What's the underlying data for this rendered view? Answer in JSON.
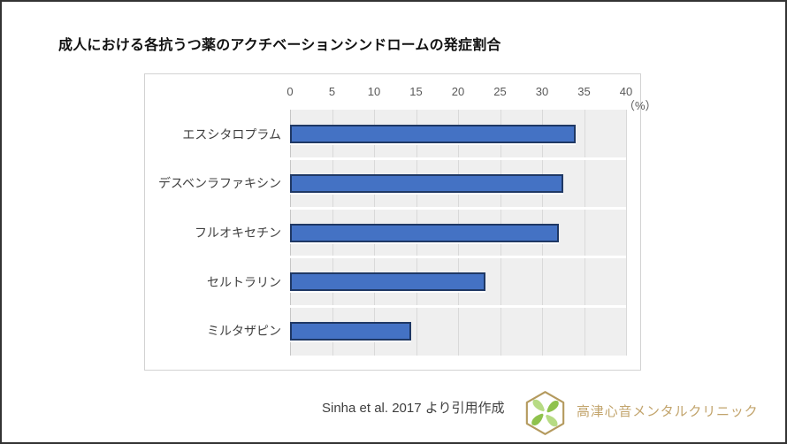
{
  "page": {
    "title": "成人における各抗うつ薬のアクチベーションシンドロームの発症割合"
  },
  "chart_data": {
    "type": "bar",
    "orientation": "horizontal",
    "title": "成人における各抗うつ薬のアクチベーションシンドロームの発症割合",
    "categories": [
      "エスシタロプラム",
      "デスベンラファキシン",
      "フルオキセチン",
      "セルトラリン",
      "ミルタザピン"
    ],
    "values": [
      34,
      32.5,
      32,
      23.3,
      14.4
    ],
    "xlim": [
      0,
      40
    ],
    "x_ticks": [
      0,
      5,
      10,
      15,
      20,
      25,
      30,
      35,
      40
    ],
    "x_unit_label": "（%）",
    "xlabel": "",
    "ylabel": "",
    "grid": true,
    "legend": false,
    "bar_color": "#4472c4",
    "bar_border_color": "#1f3864",
    "plot_bg_color": "#efefef",
    "gridline_color": "#d9d9d9"
  },
  "footer": {
    "citation": "Sinha et al. 2017 より引用作成",
    "clinic_name": "高津心音メンタルクリニック",
    "logo_icon": "clover-hexagon-icon",
    "logo_gold": "#b49a5e",
    "logo_green_dark": "#8fc24d",
    "logo_green_light": "#b7db84"
  }
}
